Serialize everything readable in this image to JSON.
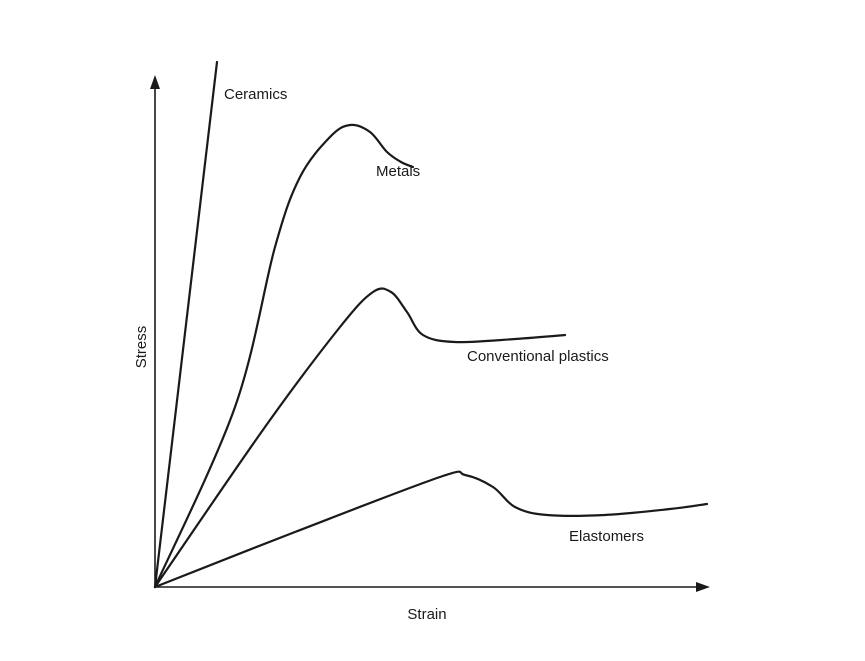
{
  "chart_data": {
    "type": "line",
    "title": "",
    "xlabel": "Strain",
    "ylabel": "Stress",
    "axis_ticks": "none",
    "grid": false,
    "legend": "none (curves labeled directly)",
    "line_color": "#1a1a1a",
    "background": "#ffffff",
    "series": [
      {
        "name": "Ceramics",
        "points": [
          [
            0,
            0
          ],
          [
            62,
            525
          ]
        ]
      },
      {
        "name": "Metals",
        "points": [
          [
            0,
            0
          ],
          [
            80,
            180
          ],
          [
            120,
            340
          ],
          [
            145,
            410
          ],
          [
            175,
            450
          ],
          [
            195,
            462
          ],
          [
            215,
            455
          ],
          [
            232,
            435
          ],
          [
            246,
            425
          ],
          [
            258,
            420
          ]
        ]
      },
      {
        "name": "Conventional plastics",
        "points": [
          [
            0,
            0
          ],
          [
            110,
            160
          ],
          [
            185,
            260
          ],
          [
            218,
            295
          ],
          [
            236,
            295
          ],
          [
            252,
            275
          ],
          [
            268,
            252
          ],
          [
            300,
            245
          ],
          [
            360,
            248
          ],
          [
            410,
            252
          ]
        ]
      },
      {
        "name": "Elastomers",
        "points": [
          [
            0,
            0
          ],
          [
            140,
            55
          ],
          [
            285,
            110
          ],
          [
            310,
            112
          ],
          [
            338,
            100
          ],
          [
            360,
            80
          ],
          [
            392,
            72
          ],
          [
            450,
            72
          ],
          [
            515,
            78
          ],
          [
            552,
            83
          ]
        ]
      }
    ]
  }
}
